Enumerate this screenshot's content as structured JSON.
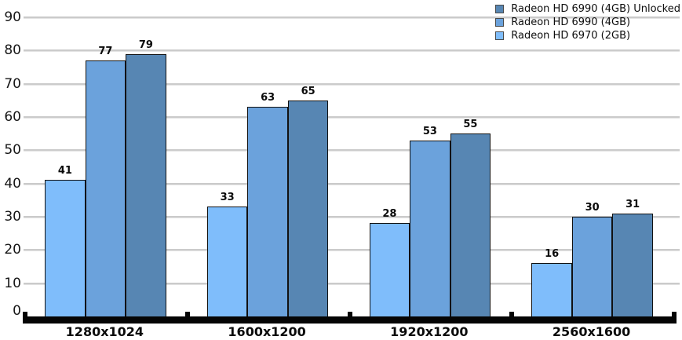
{
  "chart_data": {
    "type": "bar",
    "title": "",
    "categories": [
      "1280x1024",
      "1600x1200",
      "1920x1200",
      "2560x1600"
    ],
    "series": [
      {
        "name": "Radeon HD 6970 (2GB)",
        "color": "#7fbdfb",
        "values": [
          41,
          33,
          28,
          16
        ]
      },
      {
        "name": "Radeon HD 6990 (4GB)",
        "color": "#6ba2dc",
        "values": [
          77,
          63,
          53,
          30
        ]
      },
      {
        "name": "Radeon HD 6990 (4GB) Unlocked",
        "color": "#5786b3",
        "values": [
          79,
          65,
          55,
          31
        ]
      }
    ],
    "legend": [
      {
        "label": "Radeon HD 6990 (4GB) Unlocked",
        "color": "#5786b3"
      },
      {
        "label": "Radeon HD 6990 (4GB)",
        "color": "#6ba2dc"
      },
      {
        "label": "Radeon HD 6970 (2GB)",
        "color": "#7fbdfb"
      }
    ],
    "ylim": [
      0,
      90
    ],
    "ytick_step": 10,
    "ytick_labels": [
      "0",
      "10",
      "20",
      "30",
      "40",
      "50",
      "60",
      "70",
      "80",
      "90"
    ],
    "grid": true,
    "legend_position": "top-right",
    "bar_labels_shown": true,
    "colors": {
      "gridline": "#cbcbcb",
      "axis": "#050505",
      "background": "#ffffff",
      "bar_border": "#111111",
      "text": "#0a0a0a"
    }
  }
}
